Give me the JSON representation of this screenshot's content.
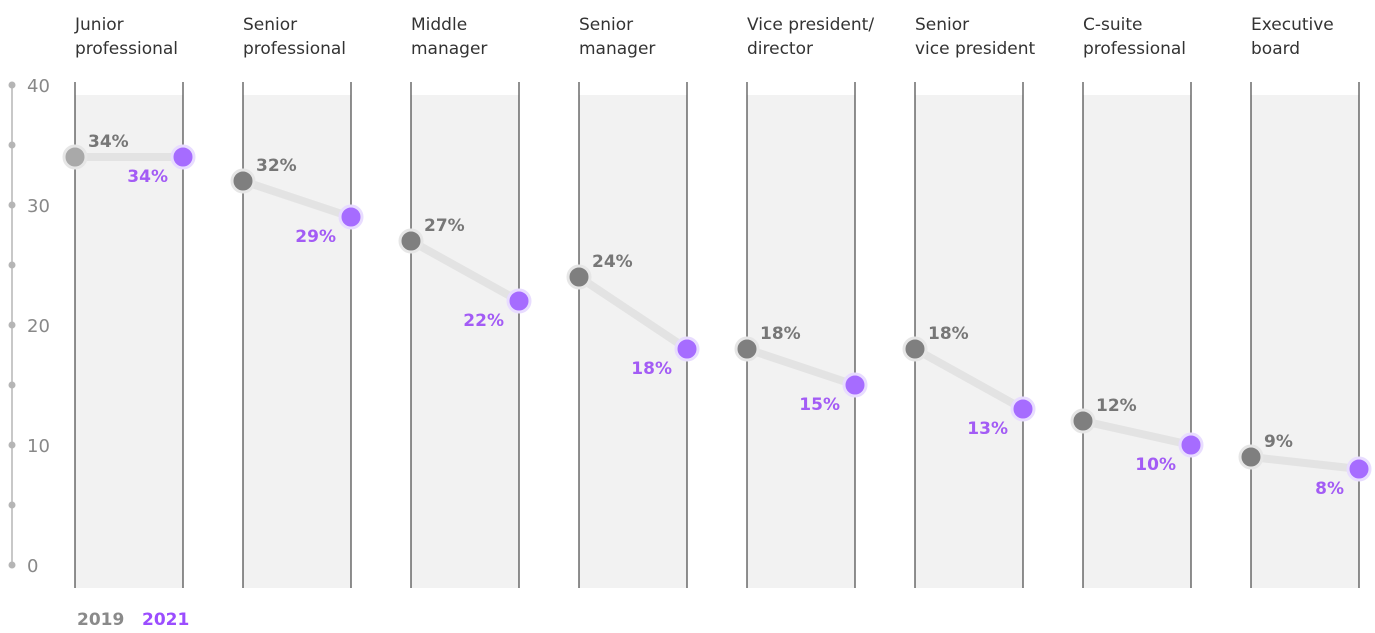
{
  "colors": {
    "series_2019": "#7f7f7f",
    "series_2021": "#a66cff",
    "label_2019": "#777777",
    "label_2021": "#a35cf5",
    "connector": "#e3e3e3",
    "band": "#f2f2f2",
    "axis": "#b5b5b5"
  },
  "chart_data": {
    "type": "dot-plot",
    "ylim": [
      0,
      40
    ],
    "y_ticks": [
      "0",
      "10",
      "20",
      "30",
      "40"
    ],
    "grid": false,
    "legend_position": "bottom-left",
    "categories": [
      [
        "Junior",
        "professional"
      ],
      [
        "Senior",
        "professional"
      ],
      [
        "Middle",
        "manager"
      ],
      [
        "Senior",
        "manager"
      ],
      [
        "Vice president/",
        "director"
      ],
      [
        "Senior",
        "vice president"
      ],
      [
        "C-suite",
        "professional"
      ],
      [
        "Executive",
        "board"
      ]
    ],
    "series": [
      {
        "name": "2019",
        "values": [
          34,
          32,
          27,
          24,
          18,
          18,
          12,
          9
        ],
        "labels": [
          "34%",
          "32%",
          "27%",
          "24%",
          "18%",
          "18%",
          "12%",
          "9%"
        ]
      },
      {
        "name": "2021",
        "values": [
          34,
          29,
          22,
          18,
          15,
          13,
          10,
          8
        ],
        "labels": [
          "34%",
          "29%",
          "22%",
          "18%",
          "15%",
          "13%",
          "10%",
          "8%"
        ]
      }
    ]
  },
  "legend": {
    "label_2019": "2019",
    "label_2021": "2021"
  }
}
